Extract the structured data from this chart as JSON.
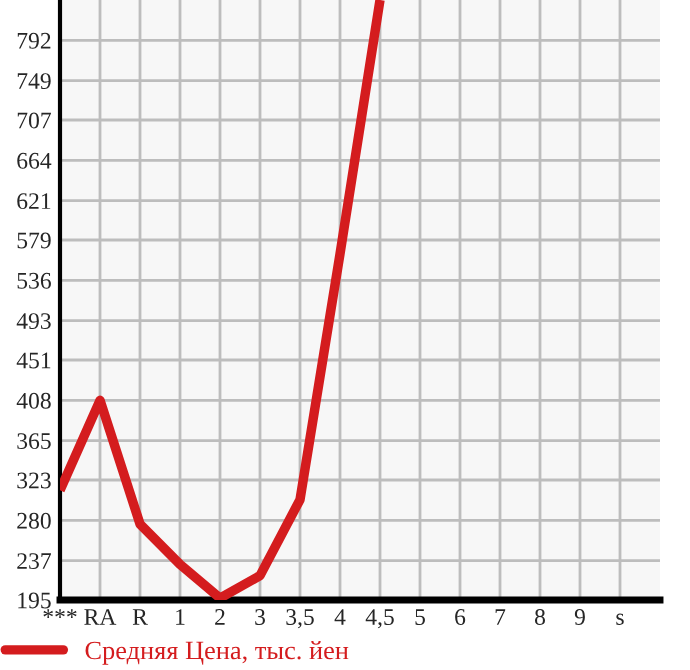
{
  "chart_data": {
    "type": "line",
    "categories": [
      "***",
      "RA",
      "R",
      "1",
      "2",
      "3",
      "3,5",
      "4",
      "4,5",
      "5",
      "6",
      "7",
      "8",
      "9",
      "s"
    ],
    "series": [
      {
        "name": "Средняя Цена, тыс. йен",
        "color": "#d41c1e",
        "values": [
          312,
          408,
          276,
          233,
          197,
          221,
          302,
          564,
          835,
          null,
          null,
          null,
          null,
          null,
          null
        ]
      }
    ],
    "ylim": [
      195,
      835
    ],
    "yticks": [
      195,
      237,
      280,
      323,
      365,
      408,
      451,
      493,
      536,
      579,
      621,
      664,
      707,
      749,
      792
    ],
    "grid": true,
    "legend": "bottom",
    "marker": "none",
    "line_style": "solid"
  }
}
